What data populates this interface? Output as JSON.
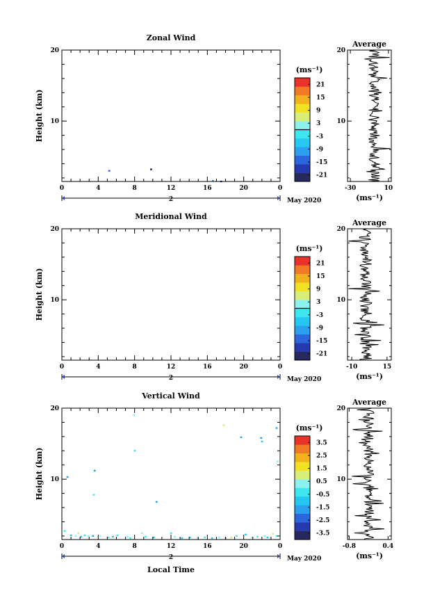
{
  "figure": {
    "date_label": "May 2020",
    "day_label": "2",
    "xlabel": "Local Time",
    "ylabel": "Height (km)",
    "unit": "(ms⁻¹)"
  },
  "colormap": [
    "#26285e",
    "#263ab0",
    "#2b66dd",
    "#2aa0ef",
    "#26c8f2",
    "#3ee6f0",
    "#8cf2f0",
    "#d8ee78",
    "#f2e224",
    "#f2b21e",
    "#f07a26",
    "#e8322a"
  ],
  "chart_data": [
    {
      "type": "heatmap",
      "title": "Zonal Wind",
      "xlabel": "",
      "ylabel": "Height (km)",
      "xlim": [
        0,
        24
      ],
      "ylim": [
        1.5,
        20
      ],
      "xticks": [
        "0",
        "4",
        "8",
        "12",
        "16",
        "20",
        "0"
      ],
      "yticks": [
        "10",
        "20"
      ],
      "colorbar": {
        "unit": "(ms⁻¹)",
        "range": [
          -24,
          24
        ],
        "ticks": [
          "-21",
          "-15",
          "-9",
          "-3",
          "3",
          "9",
          "15",
          "21"
        ],
        "zero_line": true
      },
      "points": [
        {
          "t": 5.2,
          "h": 3.0,
          "color": "#2b66dd"
        },
        {
          "t": 9.8,
          "h": 3.2,
          "color": "#26285e"
        },
        {
          "t": 16.6,
          "h": 1.6,
          "color": "#2aa0ef"
        },
        {
          "t": 17.5,
          "h": 1.5,
          "color": "#263ab0"
        }
      ],
      "profile": {
        "title": "Average",
        "xlabel": "(ms⁻¹)",
        "xlim": [
          -33,
          13
        ],
        "xticks": [
          "-30",
          "10"
        ],
        "ylim": [
          1.5,
          20
        ],
        "yticks": [
          "10",
          "20"
        ],
        "noise": 6.0,
        "offset": -5.0
      }
    },
    {
      "type": "heatmap",
      "title": "Meridional Wind",
      "xlabel": "",
      "ylabel": "Height (km)",
      "xlim": [
        0,
        24
      ],
      "ylim": [
        1.5,
        20
      ],
      "xticks": [
        "0",
        "4",
        "8",
        "12",
        "16",
        "20",
        "0"
      ],
      "yticks": [
        "10",
        "20"
      ],
      "colorbar": {
        "unit": "(ms⁻¹)",
        "range": [
          -24,
          24
        ],
        "ticks": [
          "-21",
          "-15",
          "-9",
          "-3",
          "3",
          "9",
          "15",
          "21"
        ],
        "zero_line": true
      },
      "points": [],
      "profile": {
        "title": "Average",
        "xlabel": "(ms⁻¹)",
        "xlim": [
          -13,
          18
        ],
        "xticks": [
          "-10",
          "15"
        ],
        "ylim": [
          1.5,
          20
        ],
        "yticks": [
          "10",
          "20"
        ],
        "noise": 4.5,
        "offset": 0.0
      }
    },
    {
      "type": "heatmap",
      "title": "Vertical Wind",
      "xlabel": "Local Time",
      "ylabel": "Height (km)",
      "xlim": [
        0,
        24
      ],
      "ylim": [
        1.5,
        20
      ],
      "xticks": [
        "0",
        "4",
        "8",
        "12",
        "16",
        "20",
        "0"
      ],
      "yticks": [
        "10",
        "20"
      ],
      "colorbar": {
        "unit": "(ms⁻¹)",
        "range": [
          -4,
          4
        ],
        "ticks": [
          "-3.5",
          "-2.5",
          "-1.5",
          "-0.5",
          "0.5",
          "1.5",
          "2.5",
          "3.5"
        ],
        "zero_line": false
      },
      "points": [
        {
          "t": 0.3,
          "h": 2.7,
          "color": "#3ee6f0"
        },
        {
          "t": 0.6,
          "h": 10.3,
          "color": "#2aa0ef"
        },
        {
          "t": 1.0,
          "h": 2.1,
          "color": "#26c8f2"
        },
        {
          "t": 1.5,
          "h": 2.0,
          "color": "#8cf2f0"
        },
        {
          "t": 1.8,
          "h": 2.4,
          "color": "#d8ee78"
        },
        {
          "t": 2.1,
          "h": 1.9,
          "color": "#26c8f2"
        },
        {
          "t": 2.5,
          "h": 2.1,
          "color": "#3ee6f0"
        },
        {
          "t": 2.9,
          "h": 2.0,
          "color": "#8cf2f0"
        },
        {
          "t": 3.4,
          "h": 2.0,
          "color": "#2aa0ef"
        },
        {
          "t": 3.6,
          "h": 11.2,
          "color": "#2aa0ef"
        },
        {
          "t": 3.5,
          "h": 7.8,
          "color": "#3ee6f0"
        },
        {
          "t": 4.2,
          "h": 2.0,
          "color": "#8cf2f0"
        },
        {
          "t": 5.1,
          "h": 1.8,
          "color": "#3ee6f0"
        },
        {
          "t": 5.6,
          "h": 1.9,
          "color": "#26c8f2"
        },
        {
          "t": 6.1,
          "h": 2.1,
          "color": "#3ee6f0"
        },
        {
          "t": 7.2,
          "h": 1.9,
          "color": "#8cf2f0"
        },
        {
          "t": 7.5,
          "h": 1.7,
          "color": "#3ee6f0"
        },
        {
          "t": 7.9,
          "h": 19.0,
          "color": "#8cf2f0"
        },
        {
          "t": 8.0,
          "h": 14.0,
          "color": "#3ee6f0"
        },
        {
          "t": 8.8,
          "h": 2.4,
          "color": "#8cf2f0"
        },
        {
          "t": 9.2,
          "h": 1.9,
          "color": "#3ee6f0"
        },
        {
          "t": 10.1,
          "h": 1.8,
          "color": "#26c8f2"
        },
        {
          "t": 10.4,
          "h": 6.8,
          "color": "#2aa0ef"
        },
        {
          "t": 12.0,
          "h": 2.4,
          "color": "#3ee6f0"
        },
        {
          "t": 12.4,
          "h": 1.9,
          "color": "#8cf2f0"
        },
        {
          "t": 13.2,
          "h": 1.7,
          "color": "#26c8f2"
        },
        {
          "t": 14.1,
          "h": 1.8,
          "color": "#3ee6f0"
        },
        {
          "t": 14.9,
          "h": 1.7,
          "color": "#8cf2f0"
        },
        {
          "t": 15.7,
          "h": 1.8,
          "color": "#3ee6f0"
        },
        {
          "t": 16.5,
          "h": 1.7,
          "color": "#26c8f2"
        },
        {
          "t": 17.3,
          "h": 1.8,
          "color": "#8cf2f0"
        },
        {
          "t": 17.8,
          "h": 17.6,
          "color": "#d8ee78"
        },
        {
          "t": 18.0,
          "h": 1.7,
          "color": "#3ee6f0"
        },
        {
          "t": 18.6,
          "h": 1.8,
          "color": "#d8ee78"
        },
        {
          "t": 19.2,
          "h": 2.0,
          "color": "#3ee6f0"
        },
        {
          "t": 19.7,
          "h": 15.9,
          "color": "#2aa0ef"
        },
        {
          "t": 20.2,
          "h": 2.2,
          "color": "#26c8f2"
        },
        {
          "t": 20.9,
          "h": 1.8,
          "color": "#8cf2f0"
        },
        {
          "t": 21.5,
          "h": 1.9,
          "color": "#3ee6f0"
        },
        {
          "t": 21.9,
          "h": 15.8,
          "color": "#2aa0ef"
        },
        {
          "t": 22.0,
          "h": 15.3,
          "color": "#26c8f2"
        },
        {
          "t": 22.3,
          "h": 2.0,
          "color": "#8cf2f0"
        },
        {
          "t": 22.6,
          "h": 1.8,
          "color": "#26c8f2"
        },
        {
          "t": 23.2,
          "h": 2.3,
          "color": "#d8ee78"
        },
        {
          "t": 23.6,
          "h": 17.2,
          "color": "#2aa0ef"
        },
        {
          "t": 23.7,
          "h": 12.5,
          "color": "#8cf2f0"
        },
        {
          "t": 23.6,
          "h": 2.0,
          "color": "#3ee6f0"
        }
      ],
      "profile": {
        "title": "Average",
        "xlabel": "(ms⁻¹)",
        "xlim": [
          -0.85,
          0.5
        ],
        "xticks": [
          "-0.8",
          "0.4"
        ],
        "ylim": [
          1.5,
          20
        ],
        "yticks": [
          "10",
          "20"
        ],
        "noise": 0.17,
        "offset": -0.2
      }
    }
  ]
}
